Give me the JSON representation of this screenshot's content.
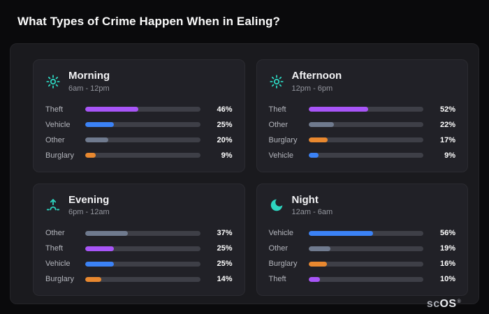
{
  "page": {
    "title": "What Types of Crime Happen When in Ealing?"
  },
  "colors": {
    "accent_icon": "#2dd4bf",
    "theft": "#a855f7",
    "vehicle": "#3b82f6",
    "other": "#6f7a8e",
    "burglary": "#e8882f"
  },
  "chart_data": [
    {
      "type": "bar",
      "title": "Morning",
      "subtitle": "6am - 12pm",
      "icon": "sun-icon",
      "categories": [
        "Theft",
        "Vehicle",
        "Other",
        "Burglary"
      ],
      "values": [
        46,
        25,
        20,
        9
      ],
      "colors": [
        "#a855f7",
        "#3b82f6",
        "#6f7a8e",
        "#e8882f"
      ],
      "unit": "%",
      "xlim": [
        0,
        100
      ],
      "grid": false,
      "legend": "none"
    },
    {
      "type": "bar",
      "title": "Afternoon",
      "subtitle": "12pm - 6pm",
      "icon": "sun-icon",
      "categories": [
        "Theft",
        "Other",
        "Burglary",
        "Vehicle"
      ],
      "values": [
        52,
        22,
        17,
        9
      ],
      "colors": [
        "#a855f7",
        "#6f7a8e",
        "#e8882f",
        "#3b82f6"
      ],
      "unit": "%",
      "xlim": [
        0,
        100
      ],
      "grid": false,
      "legend": "none"
    },
    {
      "type": "bar",
      "title": "Evening",
      "subtitle": "6pm - 12am",
      "icon": "sunset-icon",
      "categories": [
        "Other",
        "Theft",
        "Vehicle",
        "Burglary"
      ],
      "values": [
        37,
        25,
        25,
        14
      ],
      "colors": [
        "#6f7a8e",
        "#a855f7",
        "#3b82f6",
        "#e8882f"
      ],
      "unit": "%",
      "xlim": [
        0,
        100
      ],
      "grid": false,
      "legend": "none"
    },
    {
      "type": "bar",
      "title": "Night",
      "subtitle": "12am - 6am",
      "icon": "moon-icon",
      "categories": [
        "Vehicle",
        "Other",
        "Burglary",
        "Theft"
      ],
      "values": [
        56,
        19,
        16,
        10
      ],
      "colors": [
        "#3b82f6",
        "#6f7a8e",
        "#e8882f",
        "#a855f7"
      ],
      "unit": "%",
      "xlim": [
        0,
        100
      ],
      "grid": false,
      "legend": "none"
    }
  ],
  "brand": {
    "prefix": "sc",
    "suffix": "OS",
    "mark": "®"
  }
}
